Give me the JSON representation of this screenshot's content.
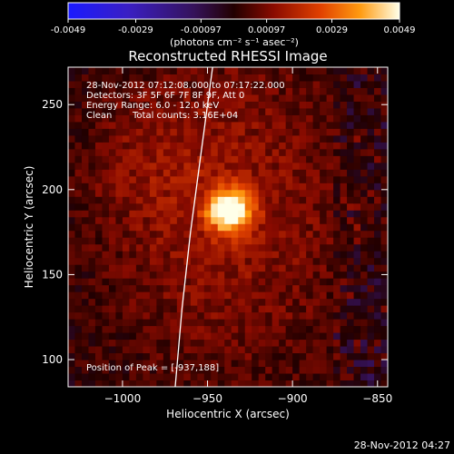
{
  "chart_data": {
    "type": "heatmap",
    "title": "Reconstructed RHESSI Image",
    "xlabel": "Heliocentric X (arcsec)",
    "ylabel": "Heliocentric Y (arcsec)",
    "xlim": [
      -1032,
      -844
    ],
    "ylim": [
      84,
      272
    ],
    "x_ticks": [
      -1000,
      -950,
      -900,
      -850
    ],
    "y_ticks": [
      100,
      150,
      200,
      250
    ],
    "colorbar": {
      "min": -0.0049,
      "max": 0.0049,
      "ticks": [
        -0.0049,
        -0.0029,
        -0.00097,
        0.00097,
        0.0029,
        0.0049
      ],
      "tick_labels": [
        "-0.0049",
        "-0.0029",
        "-0.00097",
        "0.00097",
        "0.0029",
        "0.0049"
      ],
      "unit_label": "(photons cm⁻² s⁻¹ asec⁻²)"
    },
    "annotations": {
      "time_range": "28-Nov-2012 07:12:08.000 to 07:17:22.000",
      "detectors": "Detectors: 3F 5F 6F 7F 8F 9F, Att 0",
      "energy": "Energy Range: 6.0 - 12.0 keV",
      "method": "Clean",
      "total_counts": "Total counts: 3.16E+04",
      "peak": "Position of Peak = [-937,188]"
    },
    "peak": {
      "x": -937,
      "y": 188,
      "value": 0.0049
    },
    "limb": [
      [
        -969,
        84
      ],
      [
        -965,
        130
      ],
      [
        -960,
        175
      ],
      [
        -954,
        220
      ],
      [
        -947,
        272
      ]
    ],
    "footer": "28-Nov-2012 04:27"
  }
}
